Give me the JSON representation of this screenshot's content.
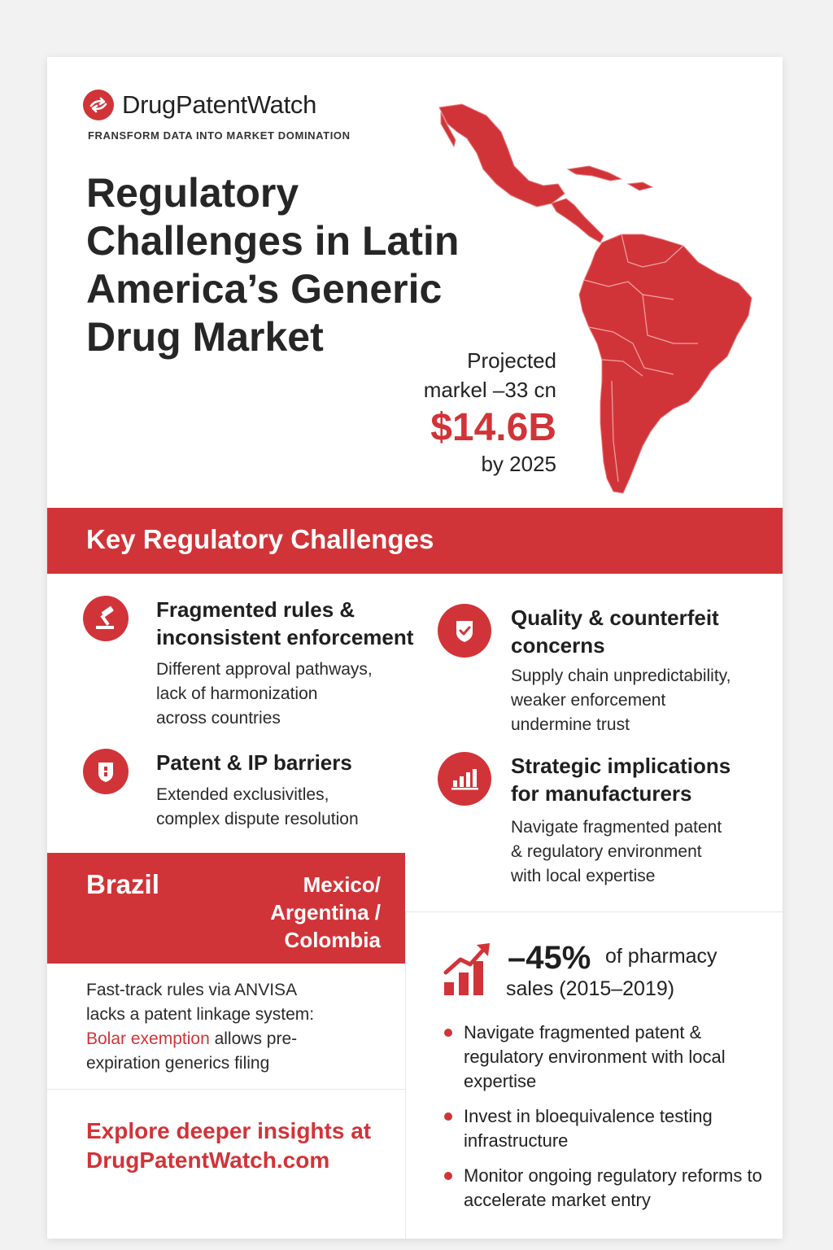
{
  "brand": {
    "name": "DrugPatentWatch",
    "tagline": "FRANSFORM DATA INTO MARKET DOMINATION",
    "logo_icon": "arrow-swirl-icon",
    "accent_color": "#d13438"
  },
  "title": "Regulatory Challenges in Latin America’s Generic Drug Market",
  "stat": {
    "label_line1": "Projected",
    "label_line2": "markel –33 cn",
    "value": "$14.6B",
    "year": "by 2025"
  },
  "section_title": "Key Regulatory Challenges",
  "challenges": [
    {
      "icon": "gavel-icon",
      "title_line1": "Fragmented rules &",
      "title_line2": "inconsistent enforcement",
      "desc_line1": "Different approval pathways,",
      "desc_line2": "lack of harmonization",
      "desc_line3": "across countries"
    },
    {
      "icon": "shield-check-icon",
      "title_line1": "Quality & counterfeit",
      "title_line2": "concerns",
      "desc_line1": "Supply chain unpredictability,",
      "desc_line2": "weaker enforcement",
      "desc_line3": "undermine trust"
    },
    {
      "icon": "shield-lock-icon",
      "title_line1": "Patent & IP barriers",
      "desc_line1": "Extended exclusivitles,",
      "desc_line2": "complex dispute resolution"
    },
    {
      "icon": "bar-chart-icon",
      "title_line1": "Strategic implications",
      "title_line2": "for manufacturers",
      "desc_line1": "Navigate fragmented patent",
      "desc_line2": "& regulatory environment",
      "desc_line3": "with local expertise"
    }
  ],
  "countries": {
    "brazil": "Brazil",
    "others_line1": "Mexico/",
    "others_line2": "Argentina /",
    "others_line3": "Colombia",
    "desc_line1": "Fast-track rules via ANVISA",
    "desc_line2": "lacks a patent linkage system:",
    "desc_highlight": "Bolar exemption",
    "desc_line3_rest": " allows pre-",
    "desc_line4": "expiration generics filing"
  },
  "sales": {
    "icon": "growth-chart-icon",
    "value": "–45%",
    "text_line1": "of pharmacy",
    "text_line2": "sales (2015–2019)"
  },
  "bullets": [
    "Navigate fragmented patent & regulatory environment with local expertise",
    "Invest in bloequivalence testing infrastructure",
    "Monitor ongoing regulatory reforms to accelerate market entry"
  ],
  "cta": {
    "line1": "Explore deeper insights at",
    "line2": "DrugPatentWatch.com"
  }
}
